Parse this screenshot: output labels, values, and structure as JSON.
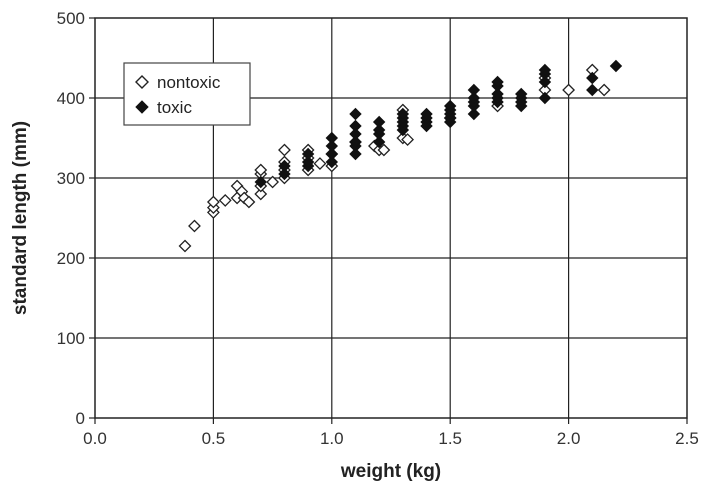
{
  "chart_data": {
    "type": "scatter",
    "xlabel": "weight (kg)",
    "ylabel": "standard length (mm)",
    "xlim": [
      0,
      2.5
    ],
    "ylim": [
      0,
      500
    ],
    "x_ticks": [
      "0.0",
      "0.5",
      "1.0",
      "1.5",
      "2.0",
      "2.5"
    ],
    "y_ticks": [
      "0",
      "100",
      "200",
      "300",
      "400",
      "500"
    ],
    "grid": true,
    "legend_position": "top-left",
    "series": [
      {
        "name": "nontoxic",
        "marker": "open-diamond",
        "color": "#222222",
        "points": [
          [
            0.38,
            215
          ],
          [
            0.42,
            240
          ],
          [
            0.5,
            257
          ],
          [
            0.5,
            263
          ],
          [
            0.5,
            270
          ],
          [
            0.55,
            272
          ],
          [
            0.6,
            275
          ],
          [
            0.6,
            290
          ],
          [
            0.62,
            283
          ],
          [
            0.63,
            275
          ],
          [
            0.65,
            270
          ],
          [
            0.7,
            280
          ],
          [
            0.7,
            290
          ],
          [
            0.7,
            305
          ],
          [
            0.7,
            310
          ],
          [
            0.75,
            295
          ],
          [
            0.8,
            300
          ],
          [
            0.8,
            310
          ],
          [
            0.8,
            320
          ],
          [
            0.8,
            335
          ],
          [
            0.9,
            310
          ],
          [
            0.9,
            325
          ],
          [
            0.9,
            335
          ],
          [
            0.95,
            318
          ],
          [
            1.0,
            315
          ],
          [
            1.0,
            330
          ],
          [
            1.1,
            345
          ],
          [
            1.18,
            340
          ],
          [
            1.2,
            335
          ],
          [
            1.22,
            335
          ],
          [
            1.3,
            350
          ],
          [
            1.3,
            385
          ],
          [
            1.32,
            348
          ],
          [
            1.5,
            375
          ],
          [
            1.7,
            390
          ],
          [
            1.9,
            410
          ],
          [
            1.9,
            425
          ],
          [
            2.0,
            410
          ],
          [
            2.1,
            435
          ],
          [
            2.15,
            410
          ]
        ]
      },
      {
        "name": "toxic",
        "marker": "filled-diamond",
        "color": "#111111",
        "points": [
          [
            0.7,
            295
          ],
          [
            0.8,
            305
          ],
          [
            0.8,
            315
          ],
          [
            0.9,
            315
          ],
          [
            0.9,
            320
          ],
          [
            0.9,
            330
          ],
          [
            1.0,
            320
          ],
          [
            1.0,
            330
          ],
          [
            1.0,
            340
          ],
          [
            1.0,
            350
          ],
          [
            1.1,
            330
          ],
          [
            1.1,
            340
          ],
          [
            1.1,
            345
          ],
          [
            1.1,
            355
          ],
          [
            1.1,
            365
          ],
          [
            1.1,
            380
          ],
          [
            1.2,
            345
          ],
          [
            1.2,
            355
          ],
          [
            1.2,
            360
          ],
          [
            1.2,
            370
          ],
          [
            1.3,
            360
          ],
          [
            1.3,
            365
          ],
          [
            1.3,
            370
          ],
          [
            1.3,
            375
          ],
          [
            1.3,
            380
          ],
          [
            1.4,
            365
          ],
          [
            1.4,
            370
          ],
          [
            1.4,
            375
          ],
          [
            1.4,
            380
          ],
          [
            1.5,
            370
          ],
          [
            1.5,
            375
          ],
          [
            1.5,
            380
          ],
          [
            1.5,
            385
          ],
          [
            1.5,
            390
          ],
          [
            1.6,
            380
          ],
          [
            1.6,
            390
          ],
          [
            1.6,
            395
          ],
          [
            1.6,
            400
          ],
          [
            1.6,
            410
          ],
          [
            1.7,
            395
          ],
          [
            1.7,
            400
          ],
          [
            1.7,
            405
          ],
          [
            1.7,
            415
          ],
          [
            1.7,
            420
          ],
          [
            1.8,
            390
          ],
          [
            1.8,
            395
          ],
          [
            1.8,
            400
          ],
          [
            1.8,
            405
          ],
          [
            1.9,
            400
          ],
          [
            1.9,
            420
          ],
          [
            1.9,
            430
          ],
          [
            1.9,
            435
          ],
          [
            2.1,
            410
          ],
          [
            2.1,
            425
          ],
          [
            2.2,
            440
          ]
        ]
      }
    ]
  }
}
